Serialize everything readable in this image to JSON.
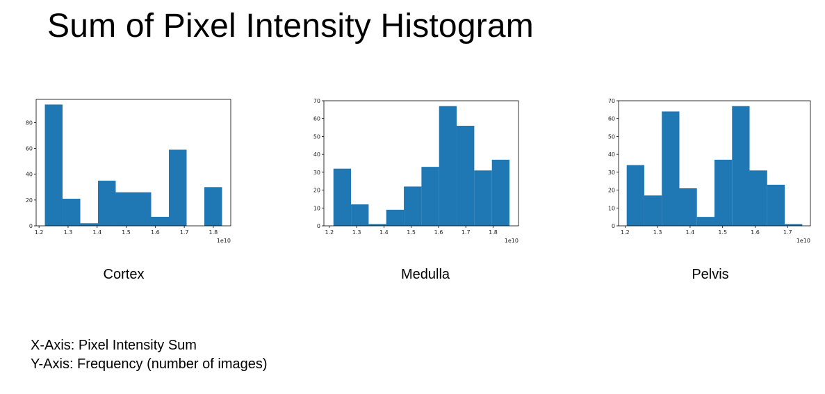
{
  "slide": {
    "title": "Sum of Pixel Intensity Histogram",
    "x_axis_note": "X-Axis: Pixel Intensity Sum",
    "y_axis_note": "Y-Axis: Frequency (number of images)"
  },
  "bar_color": "#1f77b4",
  "chart_data": [
    {
      "type": "bar",
      "caption": "Cortex",
      "bin_edges": [
        1.22,
        1.281,
        1.342,
        1.403,
        1.464,
        1.525,
        1.586,
        1.647,
        1.708,
        1.769,
        1.83
      ],
      "values": [
        94,
        21,
        2,
        35,
        26,
        26,
        7,
        59,
        0,
        30
      ],
      "xlim": [
        1.19,
        1.86
      ],
      "ylim": [
        0,
        98
      ],
      "xticks": [
        1.2,
        1.3,
        1.4,
        1.5,
        1.6,
        1.7,
        1.8
      ],
      "xtick_labels": [
        "1.2",
        "1.3",
        "1.4",
        "1.5",
        "1.6",
        "1.7",
        "1.8"
      ],
      "yticks": [
        0,
        20,
        40,
        60,
        80
      ],
      "ytick_labels": [
        "0",
        "20",
        "40",
        "60",
        "80"
      ],
      "x_offset_label": "1e10"
    },
    {
      "type": "bar",
      "caption": "Medulla",
      "bin_edges": [
        1.215,
        1.2795,
        1.344,
        1.4085,
        1.473,
        1.5375,
        1.602,
        1.6665,
        1.731,
        1.7955,
        1.86
      ],
      "values": [
        32,
        12,
        1,
        9,
        22,
        33,
        67,
        56,
        31,
        37
      ],
      "xlim": [
        1.18,
        1.893
      ],
      "ylim": [
        0,
        70
      ],
      "xticks": [
        1.2,
        1.3,
        1.4,
        1.5,
        1.6,
        1.7,
        1.8
      ],
      "xtick_labels": [
        "1.2",
        "1.3",
        "1.4",
        "1.5",
        "1.6",
        "1.7",
        "1.8"
      ],
      "yticks": [
        0,
        10,
        20,
        30,
        40,
        50,
        60,
        70
      ],
      "ytick_labels": [
        "0",
        "10",
        "20",
        "30",
        "40",
        "50",
        "60",
        "70"
      ],
      "x_offset_label": "1e10"
    },
    {
      "type": "bar",
      "caption": "Pelvis",
      "bin_edges": [
        1.205,
        1.259,
        1.313,
        1.367,
        1.421,
        1.475,
        1.529,
        1.583,
        1.637,
        1.691,
        1.745
      ],
      "values": [
        34,
        17,
        64,
        21,
        5,
        37,
        67,
        31,
        23,
        1
      ],
      "xlim": [
        1.18,
        1.77
      ],
      "ylim": [
        0,
        70
      ],
      "xticks": [
        1.2,
        1.3,
        1.4,
        1.5,
        1.6,
        1.7
      ],
      "xtick_labels": [
        "1.2",
        "1.3",
        "1.4",
        "1.5",
        "1.6",
        "1.7"
      ],
      "yticks": [
        0,
        10,
        20,
        30,
        40,
        50,
        60,
        70
      ],
      "ytick_labels": [
        "0",
        "10",
        "20",
        "30",
        "40",
        "50",
        "60",
        "70"
      ],
      "x_offset_label": "1e10"
    }
  ]
}
